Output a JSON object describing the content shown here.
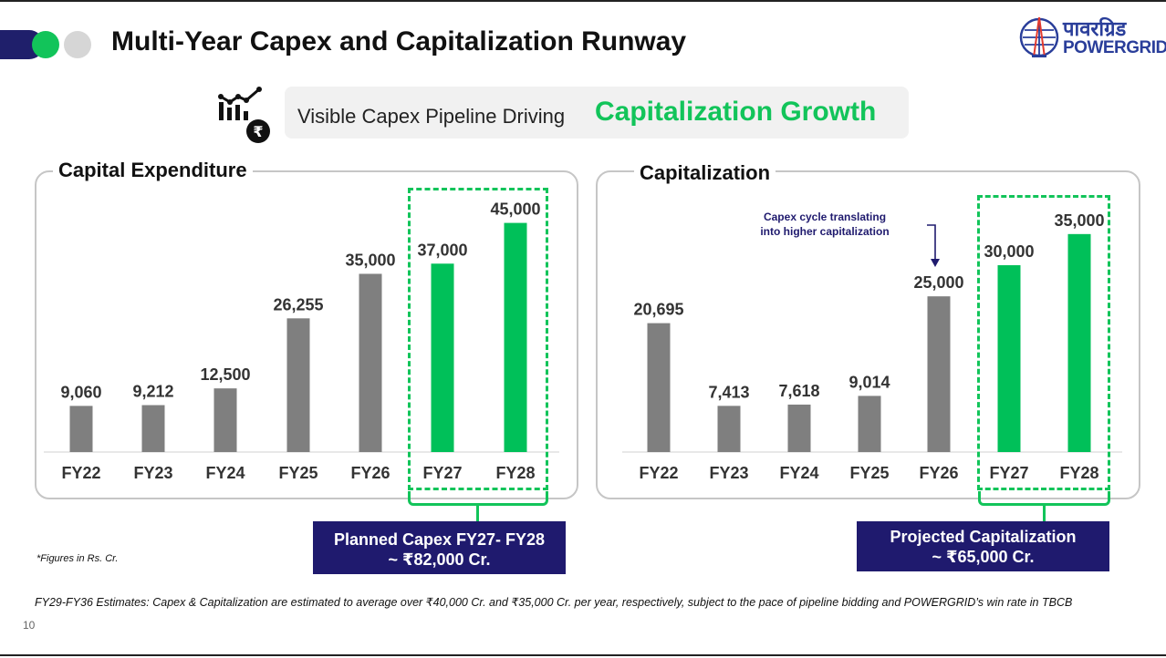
{
  "page": {
    "title": "Multi-Year Capex and Capitalization Runway",
    "number": "10"
  },
  "logo": {
    "hindi": "पावरग्रिड",
    "english": "POWERGRID"
  },
  "banner": {
    "plain": "Visible Capex Pipeline Driving",
    "accent": "Capitalization Growth"
  },
  "colors": {
    "bar_grey": "#7f7f7f",
    "bar_green": "#00c059",
    "accent_green": "#12c45a",
    "navy": "#1f1a6e"
  },
  "chart_data": [
    {
      "type": "bar",
      "title": "Capital Expenditure",
      "categories": [
        "FY22",
        "FY23",
        "FY24",
        "FY25",
        "FY26",
        "FY27",
        "FY28"
      ],
      "values": [
        9060,
        9212,
        12500,
        26255,
        35000,
        37000,
        45000
      ],
      "value_labels": [
        "9,060",
        "9,212",
        "12,500",
        "26,255",
        "35,000",
        "37,000",
        "45,000"
      ],
      "highlighted": [
        "FY27",
        "FY28"
      ],
      "ylim": [
        0,
        46000
      ],
      "xlabel": "",
      "ylabel": "",
      "grid": false
    },
    {
      "type": "bar",
      "title": "Capitalization",
      "categories": [
        "FY22",
        "FY23",
        "FY24",
        "FY25",
        "FY26",
        "FY27",
        "FY28"
      ],
      "values": [
        20695,
        7413,
        7618,
        9014,
        25000,
        30000,
        35000
      ],
      "value_labels": [
        "20,695",
        "7,413",
        "7,618",
        "9,014",
        "25,000",
        "30,000",
        "35,000"
      ],
      "highlighted": [
        "FY27",
        "FY28"
      ],
      "ylim": [
        0,
        36000
      ],
      "xlabel": "",
      "ylabel": "",
      "grid": false
    }
  ],
  "callouts": {
    "capex_line1": "Planned Capex FY27- FY28",
    "capex_line2": "~ ₹82,000 Cr.",
    "capitalization_line1": "Projected Capitalization",
    "capitalization_line2": "~ ₹65,000 Cr."
  },
  "annotation": {
    "line1": "Capex cycle translating",
    "line2": "into higher capitalization"
  },
  "footnotes": {
    "units": "*Figures in Rs. Cr.",
    "estimates": "FY29-FY36 Estimates: Capex & Capitalization are estimated to average over ₹40,000 Cr. and ₹35,000 Cr. per year, respectively, subject to the pace of pipeline bidding and POWERGRID’s win rate in TBCB"
  }
}
